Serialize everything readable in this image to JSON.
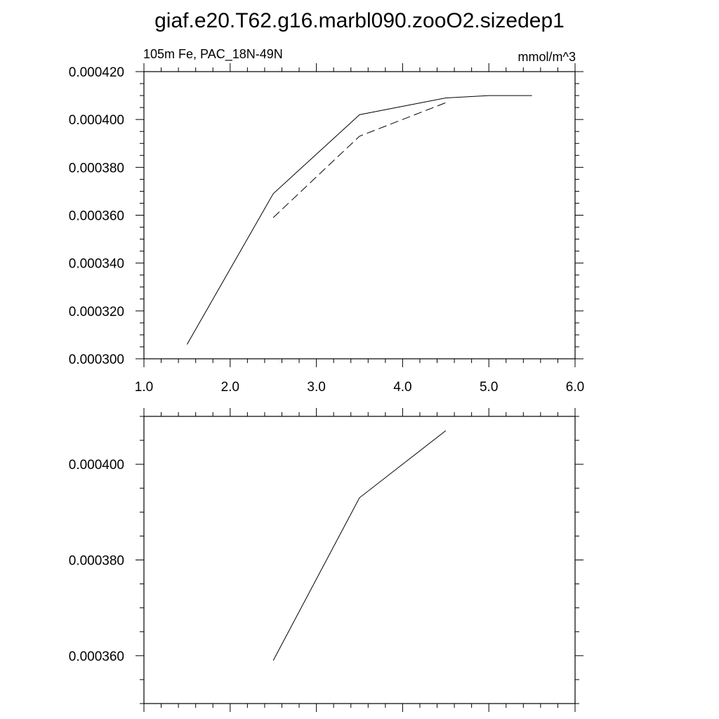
{
  "title": "giaf.e20.T62.g16.marbl090.zooO2.sizedep1",
  "chart_data": [
    {
      "type": "line",
      "subtitle_left": "105m Fe, PAC_18N-49N",
      "subtitle_right": "mmol/m^3",
      "xlim": [
        1.0,
        6.0
      ],
      "ylim": [
        0.0003,
        0.00042
      ],
      "x_ticks": [
        "1.0",
        "2.0",
        "3.0",
        "4.0",
        "5.0",
        "6.0"
      ],
      "y_ticks": [
        "0.000300",
        "0.000320",
        "0.000340",
        "0.000360",
        "0.000380",
        "0.000400",
        "0.000420"
      ],
      "grid": false,
      "series": [
        {
          "style": "solid",
          "points": [
            [
              1.5,
              0.000306
            ],
            [
              2.5,
              0.000369
            ],
            [
              3.5,
              0.000402
            ],
            [
              4.5,
              0.000409
            ],
            [
              5.0,
              0.00041
            ],
            [
              5.5,
              0.00041
            ]
          ]
        },
        {
          "style": "dashed",
          "points": [
            [
              2.5,
              0.000359
            ],
            [
              3.5,
              0.000393
            ],
            [
              4.5,
              0.000407
            ]
          ]
        }
      ]
    },
    {
      "type": "line",
      "xlim": [
        1.0,
        6.0
      ],
      "ylim": [
        0.00035,
        0.00041
      ],
      "y_ticks": [
        "0.000360",
        "0.000380",
        "0.000400"
      ],
      "grid": false,
      "series": [
        {
          "style": "solid",
          "points": [
            [
              2.5,
              0.000359
            ],
            [
              3.5,
              0.000393
            ],
            [
              4.5,
              0.000407
            ]
          ]
        }
      ]
    }
  ]
}
